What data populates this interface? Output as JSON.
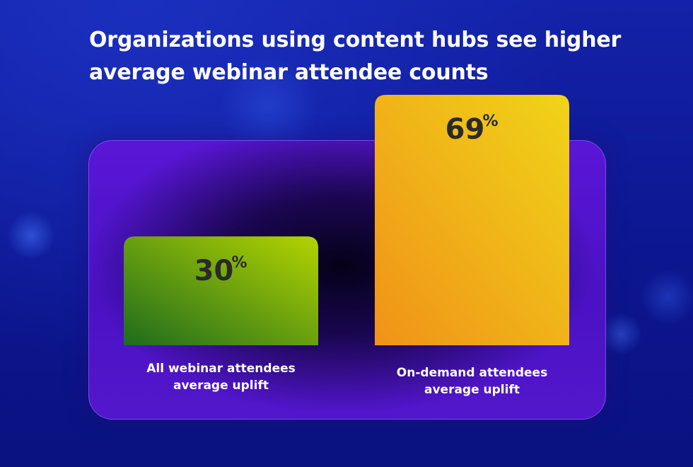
{
  "title": "Organizations using content hubs see higher average webinar attendee counts",
  "chart_data": {
    "type": "bar",
    "title": "Organizations using content hubs see higher average webinar attendee counts",
    "categories": [
      "All webinar attendees average uplift",
      "On-demand attendees average uplift"
    ],
    "category_lines": [
      [
        "All webinar attendees",
        "average uplift"
      ],
      [
        "On-demand attendees",
        "average uplift"
      ]
    ],
    "values": [
      30,
      69
    ],
    "value_labels": [
      "30",
      "69"
    ],
    "unit": "%",
    "colors": [
      {
        "top": "#b4d400",
        "bottom": "#1e6b1e"
      },
      {
        "top": "#f0d418",
        "bottom": "#f09218"
      }
    ],
    "value_text_color": "#2a2a2a",
    "grid": false,
    "legend": "none"
  }
}
